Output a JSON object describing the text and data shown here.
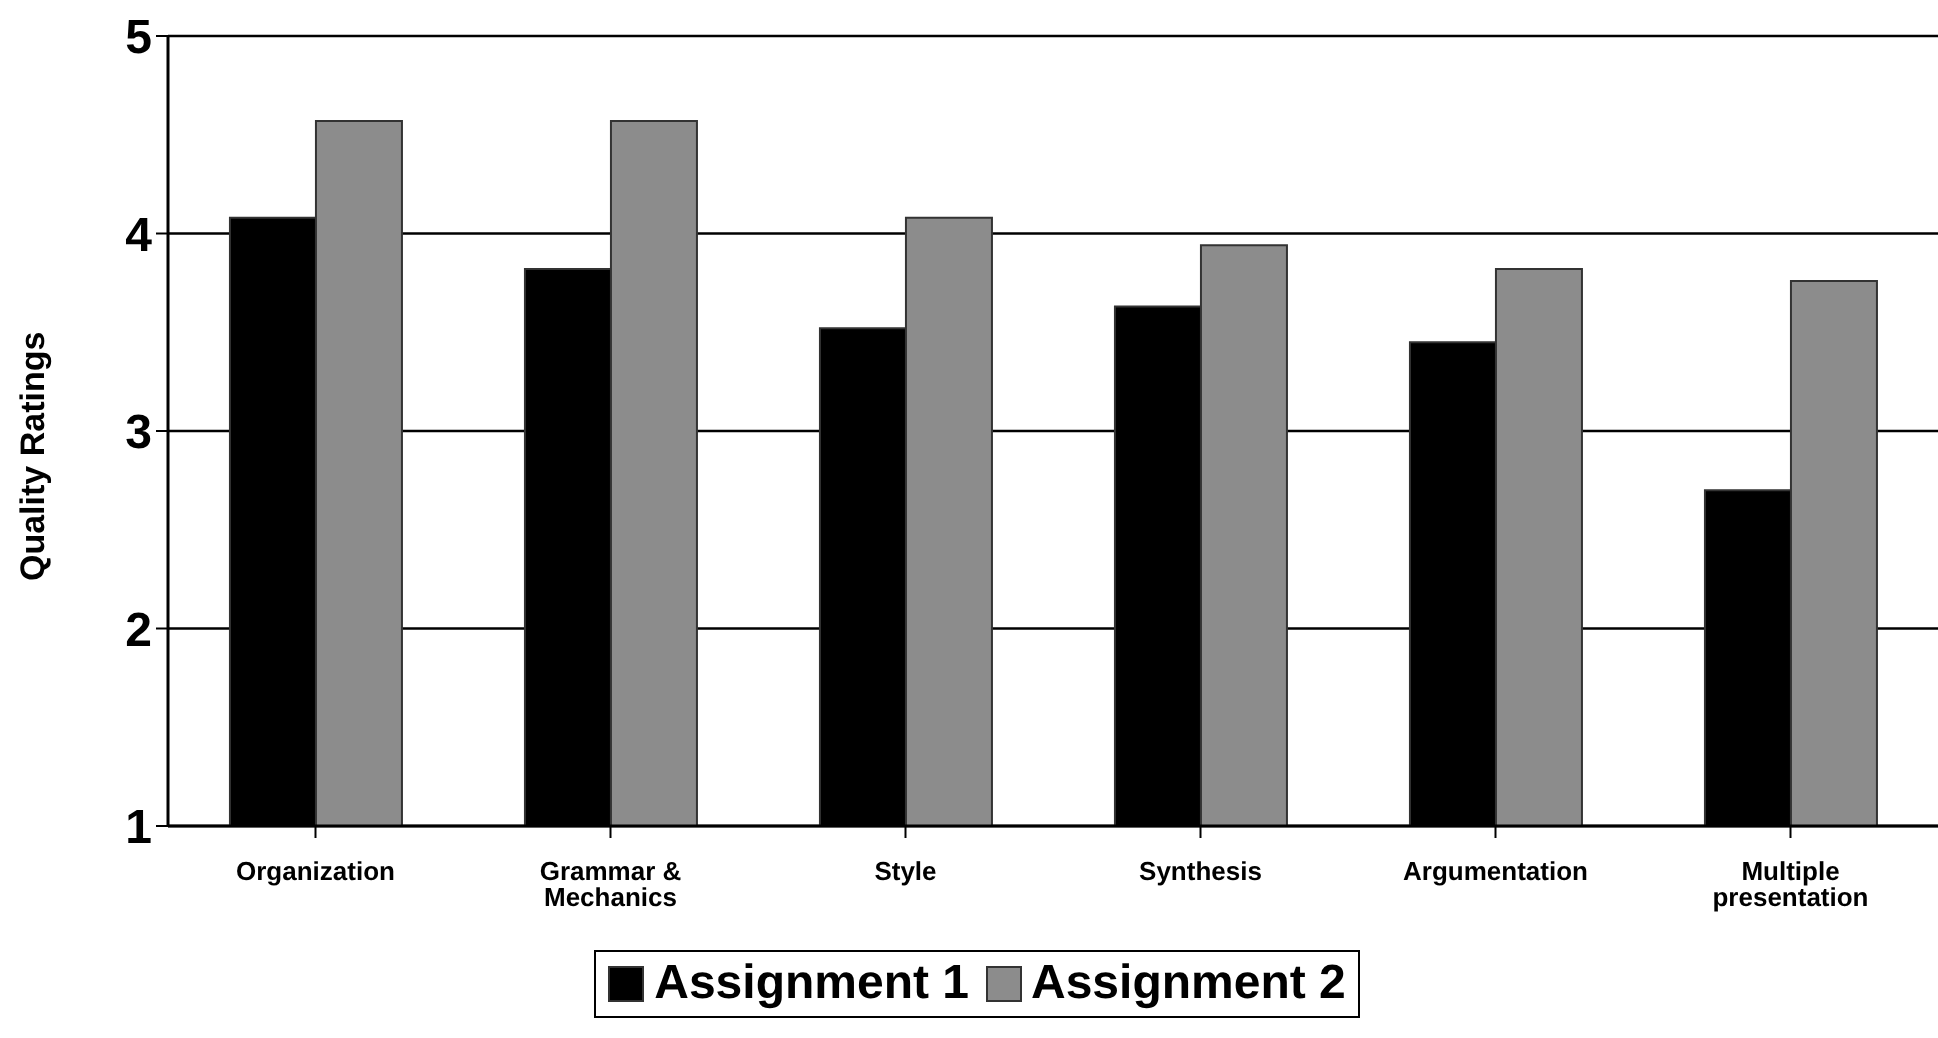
{
  "chart_data": {
    "type": "bar",
    "ylabel": "Quality Ratings",
    "categories": [
      "Organization",
      "Grammar & Mechanics",
      "Style",
      "Synthesis",
      "Argumentation",
      "Multiple presentation"
    ],
    "series": [
      {
        "name": "Assignment 1",
        "color": "#000000",
        "values": [
          4.08,
          3.82,
          3.52,
          3.63,
          3.45,
          2.7
        ]
      },
      {
        "name": "Assignment 2",
        "color": "#8c8c8c",
        "values": [
          4.57,
          4.57,
          4.08,
          3.94,
          3.82,
          3.76
        ]
      }
    ],
    "ylim": [
      1,
      5
    ],
    "yticks": [
      1,
      2,
      3,
      4,
      5
    ],
    "grid": "y",
    "legend": "bottom"
  }
}
